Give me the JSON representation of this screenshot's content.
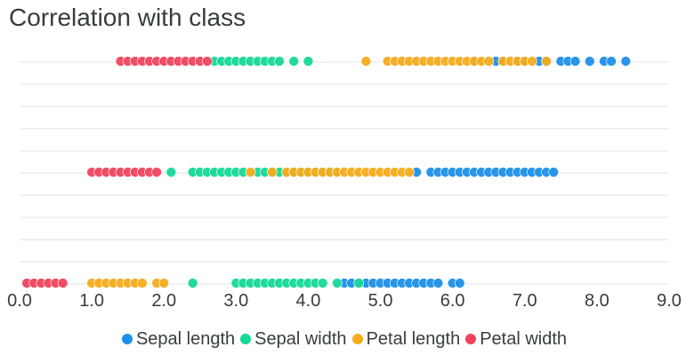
{
  "chart_data": {
    "type": "scatter",
    "title": "Correlation with class",
    "xlim": [
      0,
      9
    ],
    "x_ticks": [
      "0.0",
      "1.0",
      "2.0",
      "3.0",
      "4.0",
      "5.0",
      "6.0",
      "7.0",
      "8.0",
      "9.0"
    ],
    "grid": true,
    "legend_position": "bottom",
    "rows": 3,
    "series": [
      {
        "name": "Sepal length",
        "color": "#1e90e8",
        "points": [
          {
            "row": 0,
            "x": [
              4.5,
              4.6,
              4.7,
              4.8,
              4.9,
              5.0,
              5.1,
              5.2,
              5.3,
              5.4,
              5.5,
              5.6,
              5.7,
              5.8,
              6.0,
              6.1
            ]
          },
          {
            "row": 1,
            "x": [
              5.5,
              5.7,
              5.8,
              5.9,
              6.0,
              6.1,
              6.2,
              6.3,
              6.4,
              6.5,
              6.6,
              6.7,
              6.8,
              6.9,
              7.0,
              7.1,
              7.2,
              7.3,
              7.4
            ]
          },
          {
            "row": 2,
            "x": [
              6.3,
              6.6,
              6.7,
              6.9,
              7.0,
              7.2,
              7.3,
              7.5,
              7.6,
              7.7,
              7.9,
              8.1,
              8.2,
              8.4
            ]
          }
        ]
      },
      {
        "name": "Sepal width",
        "color": "#14d997",
        "points": [
          {
            "row": 0,
            "x": [
              2.4,
              3.0,
              3.1,
              3.2,
              3.3,
              3.4,
              3.5,
              3.6,
              3.7,
              3.8,
              3.9,
              4.0,
              4.1,
              4.2,
              4.4,
              4.7
            ]
          },
          {
            "row": 1,
            "x": [
              2.1,
              2.4,
              2.5,
              2.6,
              2.7,
              2.8,
              2.9,
              3.0,
              3.1,
              3.3,
              3.4,
              3.5,
              3.6,
              3.7,
              3.8,
              3.9,
              4.0,
              4.1,
              4.2,
              4.3,
              4.4
            ]
          },
          {
            "row": 2,
            "x": [
              2.7,
              2.8,
              2.9,
              3.0,
              3.1,
              3.2,
              3.3,
              3.4,
              3.5,
              3.6,
              3.8,
              4.0
            ]
          }
        ]
      },
      {
        "name": "Petal length",
        "color": "#f5ac1c",
        "points": [
          {
            "row": 0,
            "x": [
              1.0,
              1.1,
              1.2,
              1.3,
              1.4,
              1.5,
              1.6,
              1.7,
              1.9,
              2.0
            ]
          },
          {
            "row": 1,
            "x": [
              3.2,
              3.5,
              3.7,
              3.8,
              3.9,
              4.0,
              4.1,
              4.2,
              4.3,
              4.4,
              4.5,
              4.6,
              4.7,
              4.8,
              4.9,
              5.0,
              5.1,
              5.2,
              5.3,
              5.4
            ]
          },
          {
            "row": 2,
            "x": [
              4.8,
              5.1,
              5.2,
              5.3,
              5.4,
              5.5,
              5.6,
              5.7,
              5.8,
              5.9,
              6.0,
              6.1,
              6.2,
              6.3,
              6.4,
              6.5,
              6.7,
              6.8,
              6.9,
              7.0,
              7.1,
              7.3
            ]
          }
        ]
      },
      {
        "name": "Petal width",
        "color": "#f0445e",
        "points": [
          {
            "row": 0,
            "x": [
              0.1,
              0.2,
              0.3,
              0.4,
              0.5,
              0.6
            ]
          },
          {
            "row": 1,
            "x": [
              1.0,
              1.1,
              1.2,
              1.3,
              1.4,
              1.5,
              1.6,
              1.7,
              1.8,
              1.9
            ]
          },
          {
            "row": 2,
            "x": [
              1.4,
              1.5,
              1.6,
              1.7,
              1.8,
              1.9,
              2.0,
              2.1,
              2.2,
              2.3,
              2.4,
              2.5,
              2.6
            ]
          }
        ]
      }
    ]
  }
}
